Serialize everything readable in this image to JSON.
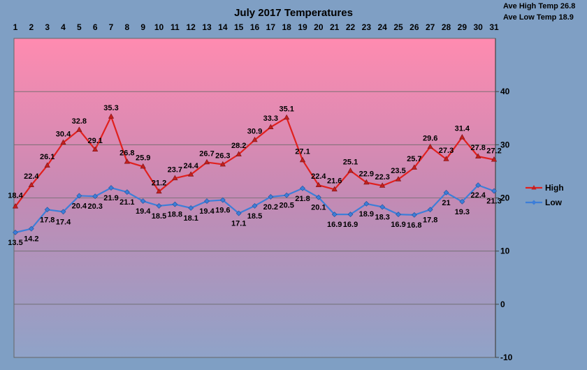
{
  "chart_data": {
    "type": "line",
    "title": "July 2017 Temperatures",
    "stats": [
      {
        "label": "Ave High Temp",
        "value": "26.8"
      },
      {
        "label": "Ave Low Temp",
        "value": "18.9"
      }
    ],
    "x": [
      1,
      2,
      3,
      4,
      5,
      6,
      7,
      8,
      9,
      10,
      11,
      12,
      13,
      14,
      15,
      16,
      17,
      18,
      19,
      20,
      21,
      22,
      23,
      24,
      25,
      26,
      27,
      28,
      29,
      30,
      31
    ],
    "series": [
      {
        "name": "High",
        "color": "#e0201e",
        "values": [
          18.4,
          22.4,
          26.1,
          30.4,
          32.8,
          29.1,
          35.3,
          26.8,
          25.9,
          21.2,
          23.7,
          24.4,
          26.7,
          26.3,
          28.2,
          30.9,
          33.3,
          35.1,
          27.1,
          22.4,
          21.6,
          25.1,
          22.9,
          22.3,
          23.5,
          25.7,
          29.6,
          27.3,
          31.4,
          27.8,
          27.2
        ]
      },
      {
        "name": "Low",
        "color": "#3d7ed8",
        "values": [
          13.5,
          14.2,
          17.8,
          17.4,
          20.4,
          20.3,
          21.9,
          21.1,
          19.4,
          18.5,
          18.8,
          18.1,
          19.4,
          19.6,
          17.1,
          18.5,
          20.2,
          20.5,
          21.8,
          20.1,
          16.9,
          16.9,
          18.9,
          18.3,
          16.9,
          16.8,
          17.8,
          21,
          19.3,
          22.4,
          21.3
        ]
      }
    ],
    "y_ticks": [
      -10,
      0,
      10,
      20,
      30,
      40
    ],
    "ylim": [
      -10,
      50
    ],
    "grid": true,
    "legend": "right"
  }
}
